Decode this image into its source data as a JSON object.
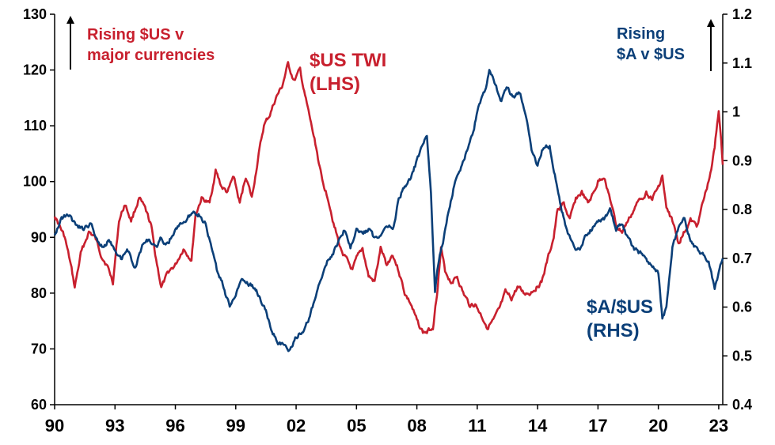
{
  "chart_data": {
    "type": "line",
    "colors": {
      "twi": "#c8202e",
      "aud": "#0b3f78"
    },
    "x_ticks": [
      "90",
      "93",
      "96",
      "99",
      "02",
      "05",
      "08",
      "11",
      "14",
      "17",
      "20",
      "23"
    ],
    "x_range": [
      1990,
      2023.2
    ],
    "y_left": {
      "ticks": [
        "60",
        "70",
        "80",
        "90",
        "100",
        "110",
        "120",
        "130"
      ],
      "range": [
        60,
        130
      ]
    },
    "y_right": {
      "ticks": [
        "0.4",
        "0.5",
        "0.6",
        "0.7",
        "0.8",
        "0.9",
        "1",
        "1.1",
        "1.2"
      ],
      "range": [
        0.4,
        1.2
      ]
    },
    "annotations": {
      "left_note": [
        "Rising $US v",
        "major currencies"
      ],
      "right_note": [
        "Rising",
        "$A v $US"
      ],
      "twi_label": [
        "$US TWI",
        "(LHS)"
      ],
      "aud_label": [
        "$A/$US",
        "(RHS)"
      ]
    },
    "series": [
      {
        "axis": "left",
        "x": [
          1990.0,
          1990.5,
          1990.8,
          1991.0,
          1991.3,
          1991.7,
          1992.0,
          1992.3,
          1992.6,
          1992.9,
          1993.2,
          1993.5,
          1993.8,
          1994.2,
          1994.5,
          1994.8,
          1995.0,
          1995.3,
          1995.7,
          1996.0,
          1996.4,
          1996.8,
          1997.0,
          1997.3,
          1997.7,
          1998.0,
          1998.3,
          1998.6,
          1998.9,
          1999.2,
          1999.5,
          1999.8,
          2000.1,
          2000.4,
          2000.7,
          2001.0,
          2001.3,
          2001.6,
          2001.9,
          2002.2,
          2002.4,
          2002.7,
          2003.0,
          2003.3,
          2003.6,
          2003.9,
          2004.2,
          2004.5,
          2004.8,
          2005.0,
          2005.3,
          2005.6,
          2005.9,
          2006.2,
          2006.5,
          2006.8,
          2007.1,
          2007.4,
          2007.7,
          2008.0,
          2008.3,
          2008.5,
          2008.8,
          2009.0,
          2009.2,
          2009.4,
          2009.7,
          2010.0,
          2010.3,
          2010.6,
          2010.9,
          2011.2,
          2011.5,
          2011.8,
          2012.1,
          2012.4,
          2012.7,
          2013.0,
          2013.3,
          2013.6,
          2013.9,
          2014.2,
          2014.5,
          2014.8,
          2015.0,
          2015.3,
          2015.6,
          2015.9,
          2016.2,
          2016.5,
          2016.8,
          2017.0,
          2017.3,
          2017.6,
          2017.9,
          2018.2,
          2018.5,
          2018.8,
          2019.1,
          2019.4,
          2019.7,
          2020.0,
          2020.2,
          2020.4,
          2020.7,
          2021.0,
          2021.3,
          2021.6,
          2021.9,
          2022.2,
          2022.5,
          2022.8,
          2023.0,
          2023.2
        ],
        "y": [
          94,
          90,
          85,
          81,
          87,
          91,
          90,
          87,
          85,
          82,
          93,
          96,
          93,
          97,
          95,
          92,
          87,
          81,
          84,
          85,
          88,
          86,
          94,
          97,
          96,
          102,
          99,
          98,
          101,
          96,
          101,
          97,
          104,
          110,
          112,
          115,
          117,
          121,
          118,
          120,
          116,
          111,
          106,
          100,
          97,
          92,
          88,
          86,
          84,
          86,
          88,
          83,
          82,
          88,
          85,
          87,
          84,
          80,
          78,
          75,
          73,
          73,
          74,
          80,
          88,
          84,
          82,
          83,
          80,
          78,
          78,
          76,
          74,
          75,
          77,
          80,
          79,
          81,
          80,
          80,
          81,
          82,
          86,
          90,
          95,
          96,
          93,
          97,
          98,
          96,
          98,
          100,
          101,
          97,
          92,
          91,
          93,
          95,
          97,
          98,
          97,
          99,
          101,
          95,
          93,
          89,
          91,
          93,
          92,
          96,
          100,
          106,
          113,
          103
        ]
      },
      {
        "axis": "right",
        "x": [
          1990.0,
          1990.3,
          1990.7,
          1991.0,
          1991.4,
          1991.8,
          1992.1,
          1992.4,
          1992.7,
          1993.0,
          1993.3,
          1993.6,
          1994.0,
          1994.4,
          1994.7,
          1995.0,
          1995.3,
          1995.6,
          1995.9,
          1996.2,
          1996.6,
          1996.9,
          1997.2,
          1997.5,
          1997.8,
          1998.1,
          1998.4,
          1998.7,
          1999.0,
          1999.3,
          1999.6,
          1999.9,
          2000.2,
          2000.5,
          2000.8,
          2001.1,
          2001.4,
          2001.7,
          2002.0,
          2002.3,
          2002.6,
          2002.9,
          2003.2,
          2003.5,
          2003.8,
          2004.1,
          2004.4,
          2004.7,
          2005.0,
          2005.3,
          2005.6,
          2005.9,
          2006.2,
          2006.5,
          2006.8,
          2007.1,
          2007.4,
          2007.7,
          2008.0,
          2008.3,
          2008.5,
          2008.7,
          2008.9,
          2009.1,
          2009.3,
          2009.6,
          2009.9,
          2010.2,
          2010.5,
          2010.8,
          2011.1,
          2011.4,
          2011.6,
          2011.9,
          2012.2,
          2012.5,
          2012.8,
          2013.1,
          2013.4,
          2013.7,
          2014.0,
          2014.3,
          2014.6,
          2014.9,
          2015.2,
          2015.5,
          2015.8,
          2016.1,
          2016.4,
          2016.7,
          2017.0,
          2017.3,
          2017.6,
          2017.9,
          2018.2,
          2018.5,
          2018.8,
          2019.1,
          2019.4,
          2019.7,
          2020.0,
          2020.2,
          2020.4,
          2020.7,
          2021.0,
          2021.3,
          2021.6,
          2021.9,
          2022.2,
          2022.5,
          2022.8,
          2023.0,
          2023.2
        ],
        "y": [
          0.75,
          0.78,
          0.79,
          0.77,
          0.76,
          0.77,
          0.74,
          0.72,
          0.74,
          0.72,
          0.7,
          0.72,
          0.68,
          0.73,
          0.74,
          0.72,
          0.74,
          0.73,
          0.75,
          0.77,
          0.78,
          0.8,
          0.79,
          0.77,
          0.72,
          0.67,
          0.64,
          0.6,
          0.63,
          0.66,
          0.65,
          0.64,
          0.62,
          0.59,
          0.55,
          0.53,
          0.52,
          0.51,
          0.54,
          0.55,
          0.57,
          0.61,
          0.65,
          0.69,
          0.71,
          0.73,
          0.76,
          0.72,
          0.76,
          0.75,
          0.76,
          0.74,
          0.75,
          0.77,
          0.76,
          0.82,
          0.85,
          0.86,
          0.9,
          0.93,
          0.95,
          0.83,
          0.63,
          0.7,
          0.73,
          0.8,
          0.86,
          0.89,
          0.92,
          0.96,
          1.02,
          1.04,
          1.08,
          1.06,
          1.02,
          1.05,
          1.03,
          1.04,
          1.0,
          0.92,
          0.89,
          0.93,
          0.93,
          0.86,
          0.8,
          0.75,
          0.72,
          0.72,
          0.75,
          0.76,
          0.77,
          0.78,
          0.8,
          0.76,
          0.77,
          0.74,
          0.72,
          0.71,
          0.7,
          0.68,
          0.67,
          0.58,
          0.6,
          0.72,
          0.76,
          0.78,
          0.74,
          0.72,
          0.71,
          0.69,
          0.64,
          0.67,
          0.7
        ]
      }
    ]
  }
}
